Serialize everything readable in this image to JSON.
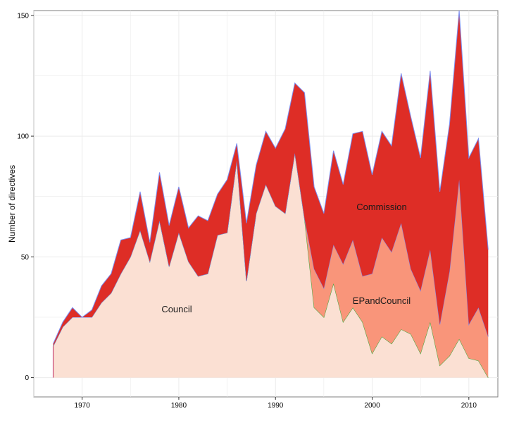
{
  "chart_data": {
    "type": "area",
    "stacked": true,
    "xlabel": "",
    "ylabel": "Number of directives",
    "xlim": [
      1965,
      2013
    ],
    "ylim": [
      -8,
      152
    ],
    "x_ticks": [
      1970,
      1980,
      1990,
      2000,
      2010
    ],
    "y_ticks": [
      0,
      50,
      100,
      150
    ],
    "grid": true,
    "years": [
      1967,
      1968,
      1969,
      1970,
      1971,
      1972,
      1973,
      1974,
      1975,
      1976,
      1977,
      1978,
      1979,
      1980,
      1981,
      1982,
      1983,
      1984,
      1985,
      1986,
      1987,
      1988,
      1989,
      1990,
      1991,
      1992,
      1993,
      1994,
      1995,
      1996,
      1997,
      1998,
      1999,
      2000,
      2001,
      2002,
      2003,
      2004,
      2005,
      2006,
      2007,
      2008,
      2009,
      2010,
      2011,
      2012
    ],
    "series": [
      {
        "name": "Council",
        "color": "#fbe0d3",
        "values": [
          13,
          21,
          25,
          25,
          25,
          31,
          35,
          43,
          50,
          61,
          48,
          65,
          46,
          60,
          48,
          42,
          43,
          59,
          60,
          90,
          40,
          68,
          80,
          71,
          68,
          93,
          66,
          29,
          25,
          39,
          23,
          29,
          23,
          10,
          17,
          14,
          20,
          18,
          10,
          23,
          5,
          9,
          16,
          8,
          7,
          0
        ]
      },
      {
        "name": "EPandCouncil",
        "color": "#f9957a",
        "values": [
          0,
          0,
          0,
          0,
          0,
          0,
          0,
          0,
          0,
          0,
          0,
          0,
          0,
          0,
          0,
          0,
          0,
          0,
          0,
          0,
          0,
          0,
          0,
          0,
          0,
          0,
          0,
          16,
          12,
          16,
          24,
          28,
          19,
          33,
          41,
          38,
          44,
          27,
          26,
          30,
          17,
          35,
          66,
          14,
          22,
          17
        ]
      },
      {
        "name": "Commission",
        "color": "#de2d26",
        "values": [
          1,
          2,
          4,
          0,
          3,
          7,
          8,
          14,
          8,
          16,
          8,
          20,
          17,
          19,
          14,
          25,
          22,
          17,
          22,
          7,
          24,
          20,
          22,
          24,
          35,
          29,
          52,
          34,
          31,
          39,
          33,
          44,
          60,
          41,
          44,
          44,
          62,
          63,
          55,
          74,
          55,
          61,
          70,
          69,
          70,
          36
        ]
      }
    ],
    "annotations": [
      "Council",
      "EPandCouncil",
      "Commission"
    ]
  }
}
